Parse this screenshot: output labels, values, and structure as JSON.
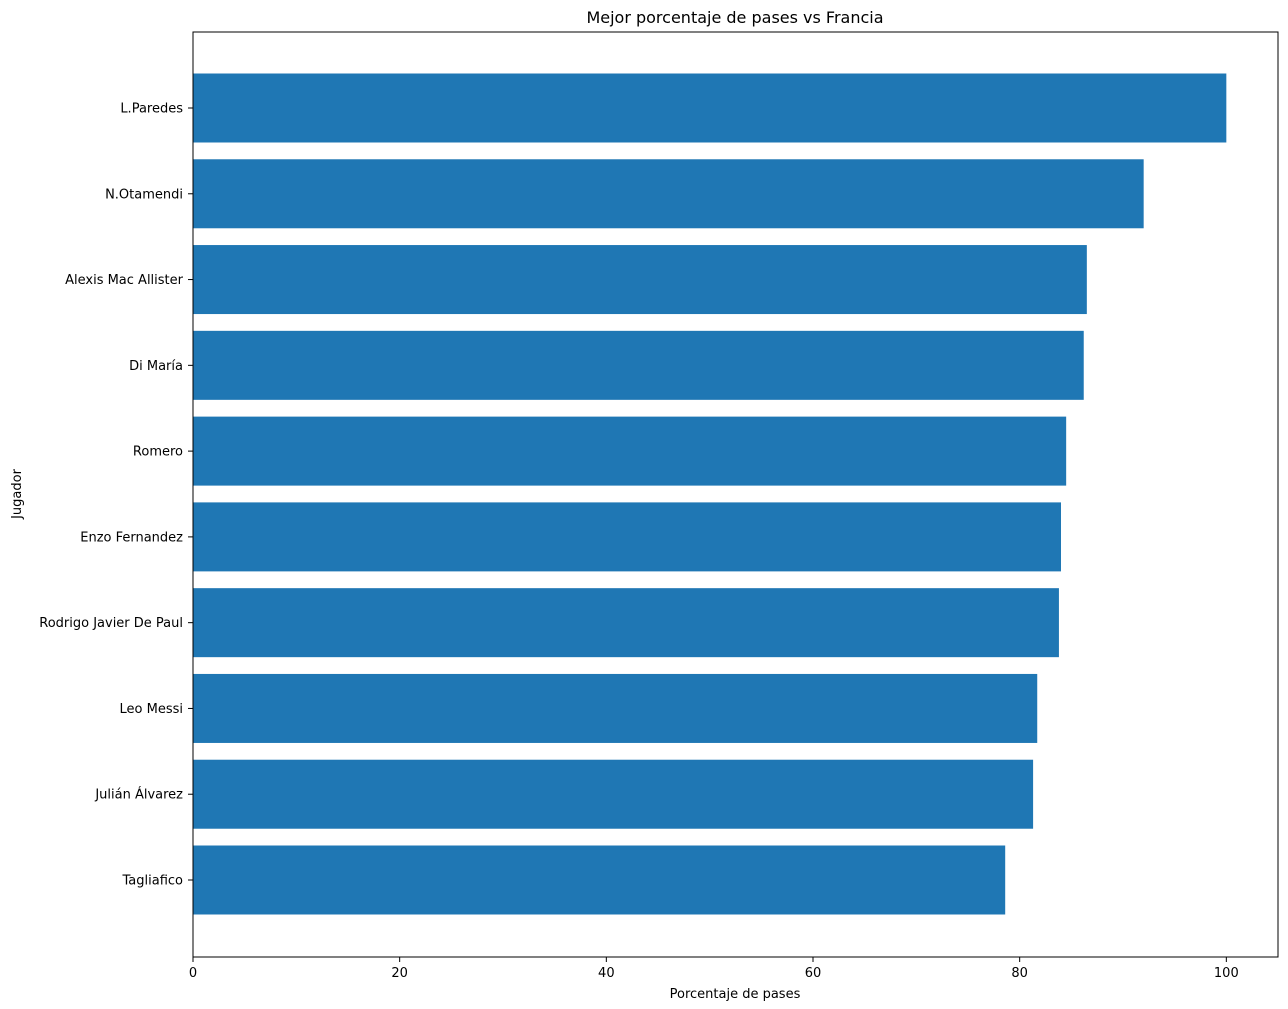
{
  "chart_data": {
    "type": "bar",
    "orientation": "horizontal",
    "title": "Mejor porcentaje de pases vs Francia",
    "xlabel": "Porcentaje de pases",
    "ylabel": "Jugador",
    "categories": [
      "L.Paredes",
      "N.Otamendi",
      "Alexis Mac Allister",
      "Di María",
      "Romero",
      "Enzo Fernandez",
      "Rodrigo Javier De Paul",
      "Leo Messi",
      "Julián Álvarez",
      "Tagliafico"
    ],
    "values": [
      100.0,
      92.0,
      86.5,
      86.2,
      84.5,
      84.0,
      83.8,
      81.7,
      81.3,
      78.6
    ],
    "xlim": [
      0,
      105
    ],
    "xticks": [
      0,
      20,
      40,
      60,
      80,
      100
    ],
    "grid": false,
    "legend": "none",
    "bar_color": "#1f77b4"
  }
}
